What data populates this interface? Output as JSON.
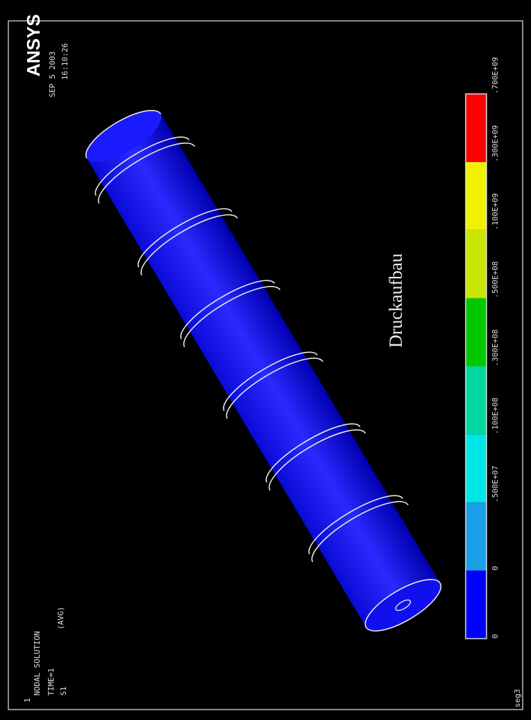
{
  "window_number": "1",
  "title": "NODAL SOLUTION",
  "time": "TIME=1",
  "result": "S1",
  "averaging": "(AVG)",
  "logo": "ANSYS",
  "date": "SEP 5 2003",
  "clock": "16:10:26",
  "annotation": "Druckaufbau",
  "legend": {
    "labels": [
      "0",
      "0",
      ".500E+07",
      ".100E+08",
      ".300E+08",
      ".500E+08",
      ".100E+09",
      ".300E+09",
      ".700E+09"
    ],
    "colors": [
      "#0000ff",
      "#1a9fe6",
      "#00e5e5",
      "#00d8a0",
      "#00c800",
      "#c8e600",
      "#f0f000",
      "#ff0000"
    ]
  },
  "footer": "seg3"
}
